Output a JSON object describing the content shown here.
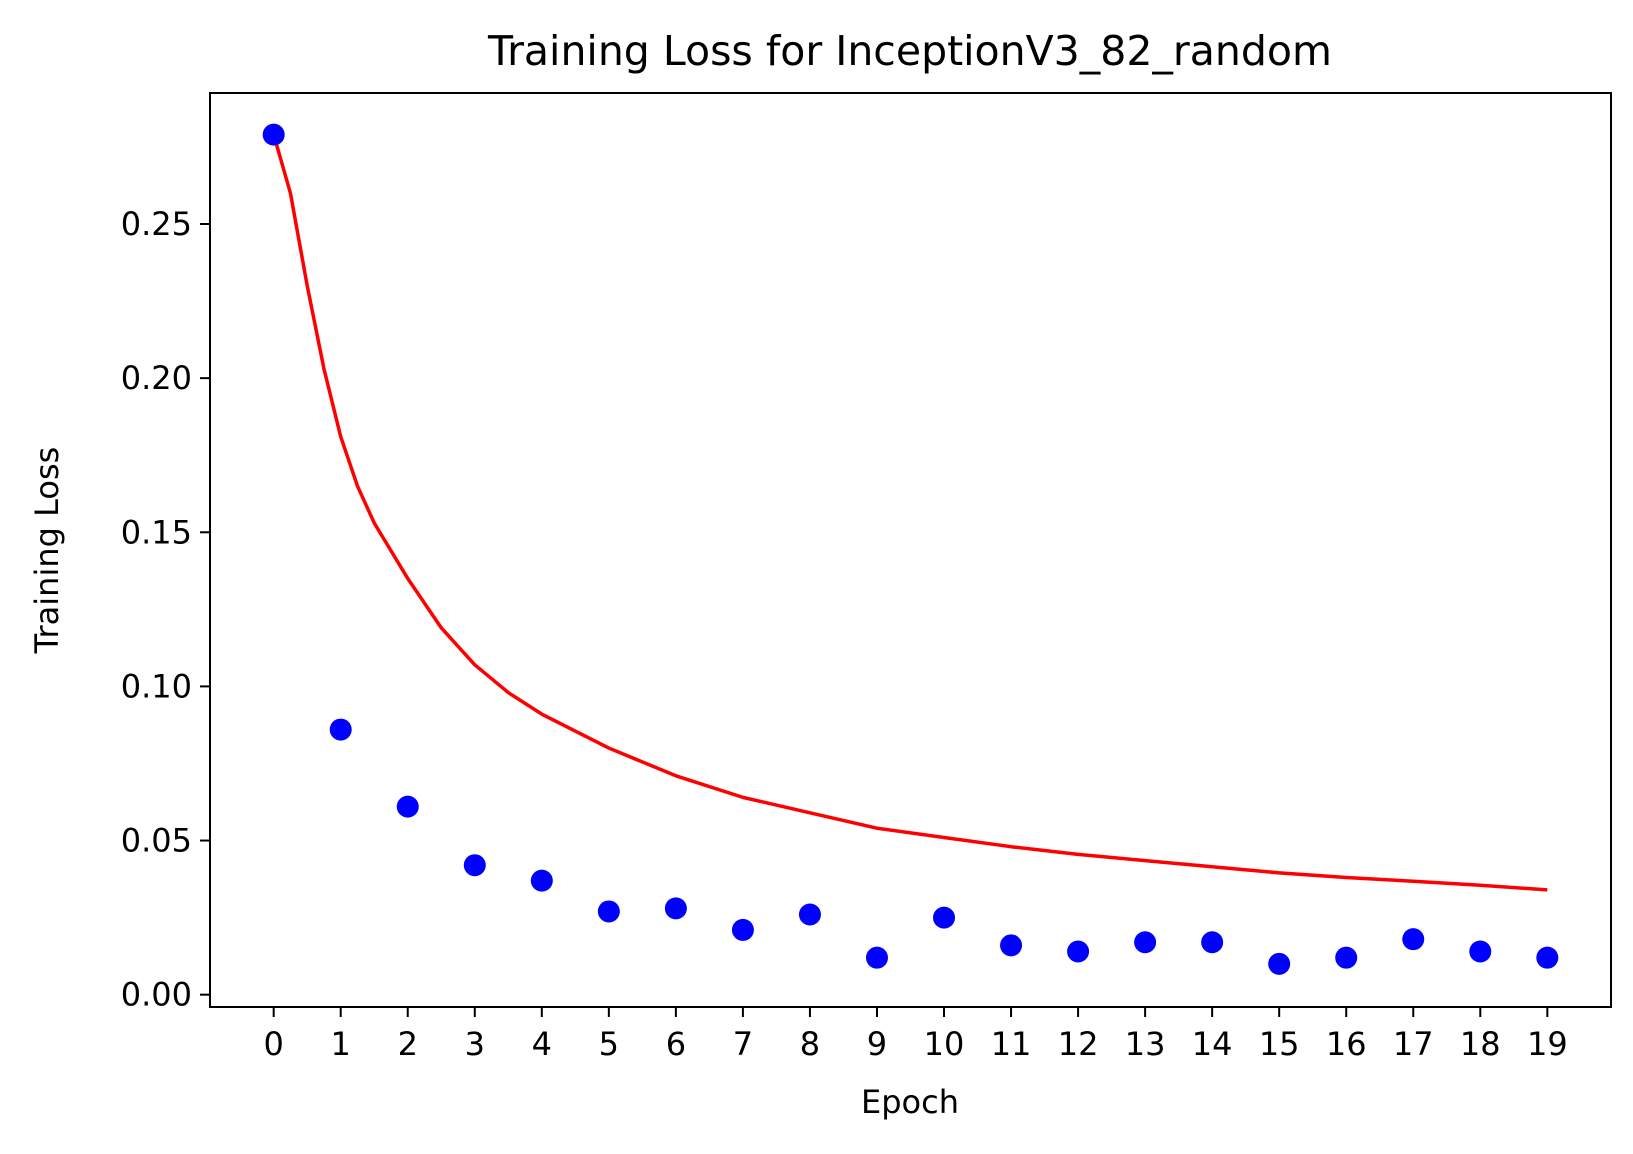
{
  "chart_data": {
    "type": "line",
    "title": "Training Loss for InceptionV3_82_random",
    "xlabel": "Epoch",
    "ylabel": "Training Loss",
    "xlim": [
      -0.95,
      19.95
    ],
    "ylim": [
      -0.004,
      0.2925
    ],
    "x_ticks": [
      "0",
      "1",
      "2",
      "3",
      "4",
      "5",
      "6",
      "7",
      "8",
      "9",
      "10",
      "11",
      "12",
      "13",
      "14",
      "15",
      "16",
      "17",
      "18",
      "19"
    ],
    "y_ticks": [
      "0.00",
      "0.05",
      "0.10",
      "0.15",
      "0.20",
      "0.25"
    ],
    "grid": false,
    "legend": "none",
    "series": [
      {
        "style": "scatter",
        "color": "#0000ff",
        "x": [
          0,
          1,
          2,
          3,
          4,
          5,
          6,
          7,
          8,
          9,
          10,
          11,
          12,
          13,
          14,
          15,
          16,
          17,
          18,
          19
        ],
        "y": [
          0.279,
          0.086,
          0.061,
          0.042,
          0.037,
          0.027,
          0.028,
          0.021,
          0.026,
          0.012,
          0.025,
          0.016,
          0.014,
          0.017,
          0.017,
          0.01,
          0.012,
          0.018,
          0.014,
          0.012
        ]
      },
      {
        "style": "line",
        "color": "#ff0000",
        "x": [
          0,
          0.25,
          0.5,
          0.75,
          1,
          1.25,
          1.5,
          2,
          2.5,
          3,
          3.5,
          4,
          5,
          6,
          7,
          8,
          9,
          10,
          11,
          12,
          13,
          14,
          15,
          16,
          17,
          18,
          19
        ],
        "y": [
          0.279,
          0.26,
          0.23,
          0.203,
          0.181,
          0.165,
          0.153,
          0.135,
          0.119,
          0.107,
          0.098,
          0.091,
          0.08,
          0.071,
          0.064,
          0.059,
          0.054,
          0.051,
          0.048,
          0.0455,
          0.0435,
          0.0415,
          0.0395,
          0.038,
          0.0368,
          0.0355,
          0.034
        ]
      }
    ]
  }
}
